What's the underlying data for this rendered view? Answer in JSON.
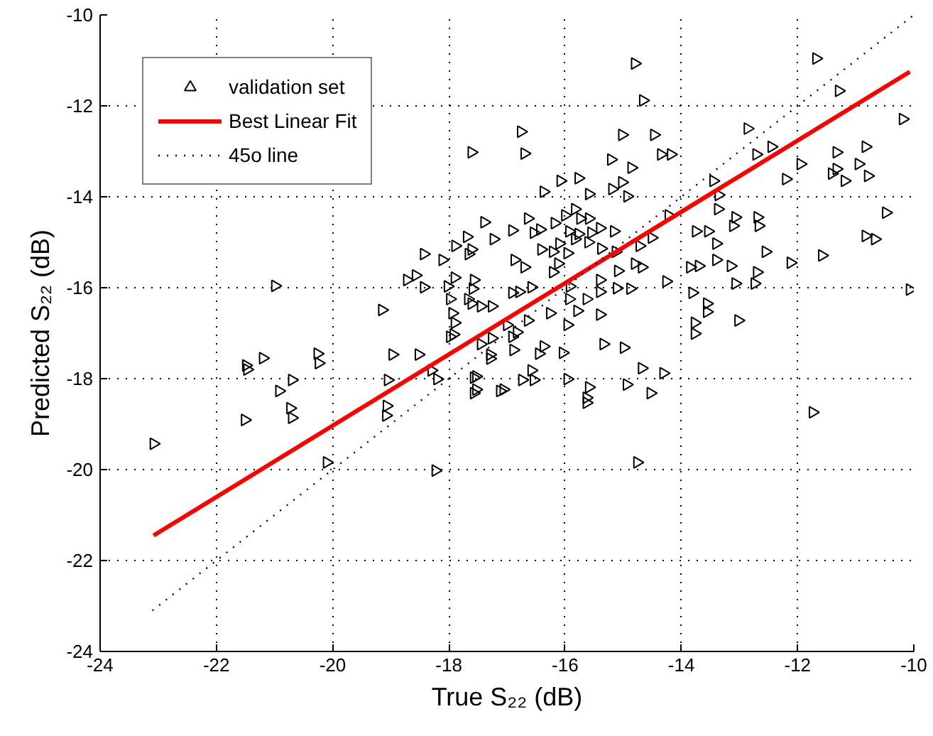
{
  "chart_data": {
    "type": "scatter",
    "xlabel": "True S₂₂ (dB)",
    "ylabel": "Predicted S₂₂ (dB)",
    "xlim": [
      -24,
      -10
    ],
    "ylim": [
      -24,
      -10
    ],
    "xticks": [
      -24,
      -22,
      -20,
      -18,
      -16,
      -14,
      -12,
      -10
    ],
    "yticks": [
      -24,
      -22,
      -20,
      -18,
      -16,
      -14,
      -12,
      -10
    ],
    "grid": true,
    "legend": "top left",
    "series": [
      {
        "name": "validation set",
        "type": "scatter",
        "marker": "triangle",
        "color": "#000000",
        "x": [
          -17.61,
          -17.39,
          -17.23,
          -17.69,
          -17.89,
          -18.43,
          -18.11,
          -17.66,
          -17.61,
          -20.99,
          -18.72,
          -18.57,
          -18.43,
          -18.02,
          -17.9,
          -17.57,
          -17.59,
          -17.98,
          -17.67,
          -17.61,
          -17.45,
          -17.26,
          -19.15,
          -17.94,
          -17.9,
          -17.92,
          -17.98,
          -17.45,
          -17.26,
          -17.29,
          -18.97,
          -18.52,
          -21.2,
          -20.26,
          -21.49,
          -20.24,
          -21.47,
          -20.7,
          -20.92,
          -20.73,
          -20.7,
          -21.51,
          -23.08,
          -20.1,
          -18.23,
          -19.05,
          -19.07,
          -19.08,
          -18.3,
          -18.2,
          -17.57,
          -17.57,
          -17.29,
          -17.12,
          -14.8,
          -14.66,
          -11.68,
          -11.29,
          -10.19,
          -12.86,
          -12.45,
          -12.71,
          -11.95,
          -12.2,
          -11.33,
          -10.83,
          -10.95,
          -10.79,
          -11.41,
          -11.19,
          -11.33,
          -10.48,
          -10.83,
          -10.67,
          -11.58,
          -12.12,
          -12.55,
          -12.7,
          -12.74,
          -13.07,
          -13.02,
          -10.07,
          -13.45,
          -13.36,
          -13.37,
          -13.07,
          -12.69,
          -12.67,
          -13.11,
          -13.75,
          -13.54,
          -13.4,
          -13.4,
          -13.15,
          -13.7,
          -13.85,
          -13.81,
          -13.56,
          -13.56,
          -13.77,
          -13.77,
          -14.26,
          -14.22,
          -14.51,
          -15.02,
          -14.47,
          -15.21,
          -14.86,
          -14.35,
          -14.18,
          -16.76,
          -16.7,
          -16.08,
          -15.77,
          -16.37,
          -15.59,
          -15.19,
          -15.02,
          -14.93,
          -15.83,
          -16.0,
          -15.74,
          -15.59,
          -16.64,
          -16.91,
          -16.54,
          -16.43,
          -16.18,
          -15.93,
          -15.77,
          -15.55,
          -15.4,
          -15.16,
          -15.83,
          -15.6,
          -15.38,
          -15.13,
          -14.72,
          -16.41,
          -16.21,
          -16.1,
          -15.96,
          -16.87,
          -16.7,
          -16.21,
          -15.09,
          -14.8,
          -14.68,
          -16.12,
          -15.4,
          -15.11,
          -14.88,
          -15.92,
          -16.58,
          -16.79,
          -16.91,
          -15.93,
          -15.63,
          -15.4,
          -15.79,
          -15.4,
          -16.26,
          -16.64,
          -15.96,
          -17.0,
          -16.83,
          -16.91,
          -16.37,
          -16.04,
          -16.45,
          -16.89,
          -15.34,
          -14.99,
          -14.68,
          -14.31,
          -14.94,
          -14.53,
          -15.59,
          -15.63,
          -15.63,
          -15.96,
          -16.58,
          -16.74,
          -16.54,
          -17.06,
          -17.53,
          -17.53,
          -11.74,
          -14.76
        ],
        "values": [
          -13.02,
          -14.56,
          -14.93,
          -14.88,
          -15.08,
          -15.26,
          -15.39,
          -15.26,
          -15.16,
          -15.96,
          -15.83,
          -15.73,
          -15.99,
          -15.97,
          -15.78,
          -15.83,
          -16.02,
          -16.25,
          -16.25,
          -16.35,
          -16.41,
          -16.41,
          -16.49,
          -16.56,
          -16.77,
          -17.03,
          -17.08,
          -17.24,
          -17.11,
          -17.47,
          -17.47,
          -17.47,
          -17.55,
          -17.45,
          -17.71,
          -17.66,
          -17.8,
          -18.03,
          -18.27,
          -18.65,
          -18.86,
          -18.91,
          -19.43,
          -19.84,
          -20.02,
          -18.03,
          -18.6,
          -18.81,
          -17.82,
          -18.01,
          -17.98,
          -18.32,
          -17.56,
          -18.27,
          -11.07,
          -11.88,
          -10.96,
          -11.67,
          -12.29,
          -12.5,
          -12.9,
          -13.07,
          -13.28,
          -13.61,
          -13.02,
          -12.9,
          -13.28,
          -13.54,
          -13.49,
          -13.65,
          -13.39,
          -14.35,
          -14.86,
          -14.93,
          -15.29,
          -15.45,
          -15.21,
          -15.66,
          -15.91,
          -15.91,
          -16.72,
          -16.04,
          -13.65,
          -13.96,
          -14.27,
          -14.45,
          -14.45,
          -14.64,
          -14.64,
          -14.76,
          -14.76,
          -15.03,
          -15.39,
          -15.52,
          -15.52,
          -15.55,
          -16.11,
          -16.35,
          -16.53,
          -16.77,
          -17.01,
          -15.86,
          -14.41,
          -14.9,
          -12.64,
          -12.64,
          -13.18,
          -13.36,
          -13.07,
          -13.07,
          -12.57,
          -13.05,
          -13.65,
          -13.59,
          -13.89,
          -13.94,
          -13.83,
          -13.68,
          -13.99,
          -14.27,
          -14.41,
          -14.48,
          -14.48,
          -14.48,
          -14.74,
          -14.79,
          -14.72,
          -14.58,
          -14.76,
          -14.82,
          -14.79,
          -14.69,
          -14.76,
          -14.93,
          -15.0,
          -15.14,
          -15.21,
          -15.08,
          -15.16,
          -15.21,
          -15.03,
          -15.24,
          -15.39,
          -15.55,
          -15.66,
          -15.63,
          -15.47,
          -15.55,
          -15.47,
          -15.83,
          -16.01,
          -16.02,
          -15.97,
          -15.99,
          -16.09,
          -16.11,
          -16.25,
          -16.25,
          -16.09,
          -16.51,
          -16.59,
          -16.56,
          -16.72,
          -16.82,
          -16.82,
          -16.98,
          -17.08,
          -17.29,
          -17.43,
          -17.45,
          -17.37,
          -17.24,
          -17.32,
          -17.77,
          -17.88,
          -18.13,
          -18.32,
          -18.19,
          -18.42,
          -18.53,
          -18.01,
          -17.82,
          -18.03,
          -18.03,
          -18.24,
          -18.24,
          -17.95,
          -18.74,
          -19.84
        ]
      },
      {
        "name": "Best Linear Fit",
        "type": "line",
        "line_style": "solid",
        "color": "#ff0000",
        "x": [
          -23.08,
          -10.07
        ],
        "values": [
          -21.45,
          -11.25
        ]
      },
      {
        "name": "45o line",
        "type": "line",
        "line_style": "dotted",
        "color": "#000000",
        "x": [
          -23.1,
          -10
        ],
        "values": [
          -23.1,
          -10
        ]
      }
    ]
  }
}
